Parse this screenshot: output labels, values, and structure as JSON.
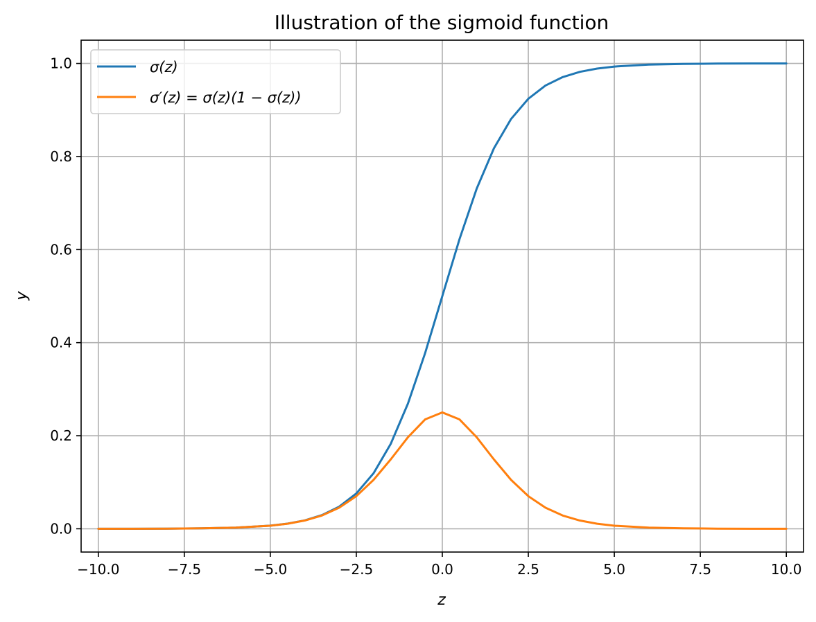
{
  "chart_data": {
    "type": "line",
    "title": "Illustration of the sigmoid function",
    "xlabel": "z",
    "ylabel": "y",
    "xlim": [
      -10.5,
      10.5
    ],
    "ylim": [
      -0.05,
      1.05
    ],
    "xticks": [
      -10,
      -7.5,
      -5,
      -2.5,
      0,
      2.5,
      5,
      7.5,
      10
    ],
    "xtick_labels": [
      "−10.0",
      "−7.5",
      "−5.0",
      "−2.5",
      "0.0",
      "2.5",
      "5.0",
      "7.5",
      "10.0"
    ],
    "yticks": [
      0,
      0.2,
      0.4,
      0.6,
      0.8,
      1.0
    ],
    "ytick_labels": [
      "0.0",
      "0.2",
      "0.4",
      "0.6",
      "0.8",
      "1.0"
    ],
    "grid": true,
    "legend_position": "top-left",
    "x": [
      -10,
      -9,
      -8,
      -7,
      -6,
      -5,
      -4.5,
      -4,
      -3.5,
      -3,
      -2.5,
      -2,
      -1.5,
      -1,
      -0.5,
      0,
      0.5,
      1,
      1.5,
      2,
      2.5,
      3,
      3.5,
      4,
      4.5,
      5,
      6,
      7,
      8,
      9,
      10
    ],
    "series": [
      {
        "name": "σ(z)",
        "color": "#1f77b4",
        "values": [
          0.0,
          0.0001,
          0.0003,
          0.0009,
          0.0025,
          0.0067,
          0.011,
          0.018,
          0.0293,
          0.0474,
          0.0759,
          0.1192,
          0.1824,
          0.2689,
          0.3775,
          0.5,
          0.6225,
          0.7311,
          0.8176,
          0.8808,
          0.9241,
          0.9526,
          0.9707,
          0.982,
          0.989,
          0.9933,
          0.9975,
          0.9991,
          0.9997,
          0.9999,
          1.0
        ]
      },
      {
        "name": "σ′(z) = σ(z)(1 − σ(z))",
        "color": "#ff7f0e",
        "values": [
          0.0,
          0.0001,
          0.0003,
          0.0009,
          0.0025,
          0.0066,
          0.0109,
          0.0177,
          0.0285,
          0.0452,
          0.0701,
          0.105,
          0.1491,
          0.1966,
          0.235,
          0.25,
          0.235,
          0.1966,
          0.1491,
          0.105,
          0.0701,
          0.0452,
          0.0285,
          0.0177,
          0.0109,
          0.0066,
          0.0025,
          0.0009,
          0.0003,
          0.0001,
          0.0
        ]
      }
    ]
  }
}
